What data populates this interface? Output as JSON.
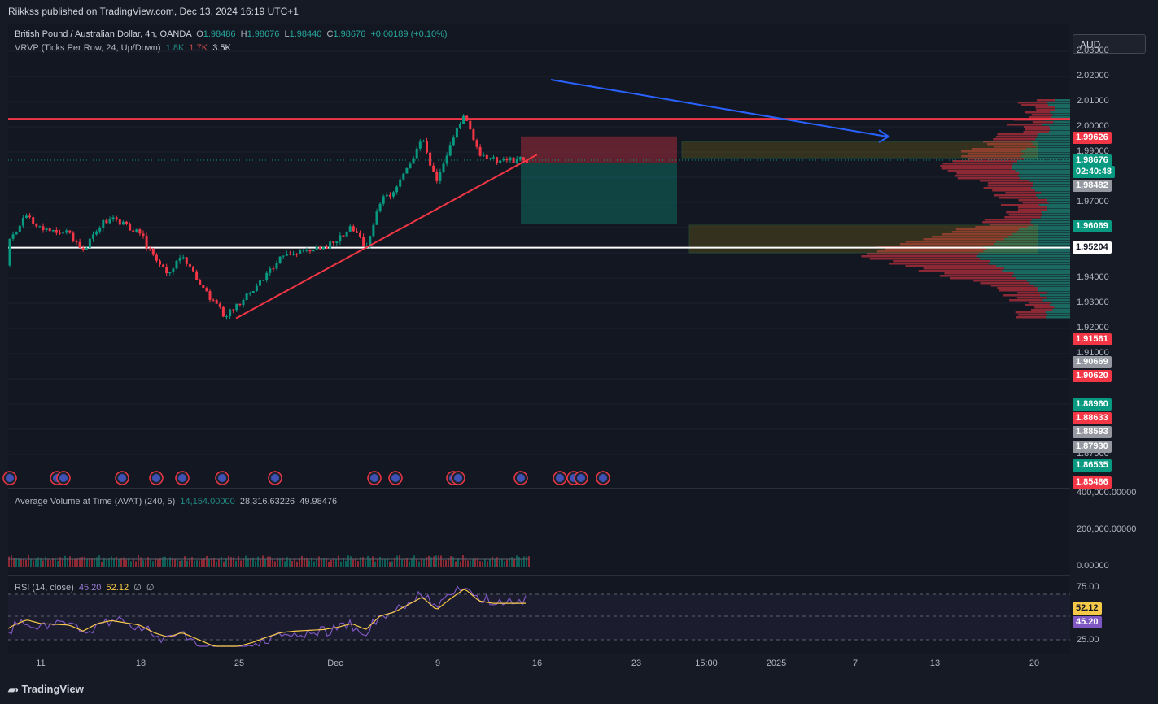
{
  "publisher_line": "Riikkss published on TradingView.com, Dec 13, 2024 16:19 UTC+1",
  "currency": "AUD",
  "main_legend": {
    "symbol": "British Pound / Australian Dollar, 4h, OANDA",
    "o_label": "O",
    "o": "1.98486",
    "h_label": "H",
    "h": "1.98676",
    "l_label": "L",
    "l": "1.98440",
    "c_label": "C",
    "c": "1.98676",
    "change": "+0.00189 (+0.10%)"
  },
  "vrvp_legend": {
    "label": "VRVP (Ticks Per Row, 24, Up/Down)",
    "v1": "1.8K",
    "v2": "1.7K",
    "v3": "3.5K"
  },
  "avat_legend": {
    "label": "Average Volume at Time (AVAT) (240, 5)",
    "v1": "14,154.00000",
    "v2": "28,316.63226",
    "v3": "49.98476"
  },
  "rsi_legend": {
    "label": "RSI (14, close)",
    "v1": "45.20",
    "v2": "52.12",
    "v3": "∅",
    "v4": "∅"
  },
  "price_axis": {
    "ticks": [
      "2.03000",
      "2.02000",
      "2.01000",
      "2.00000",
      "1.99000",
      "1.97000",
      "1.95000",
      "1.94000",
      "1.93000",
      "1.92000",
      "1.91000",
      "1.87000"
    ],
    "tags": [
      {
        "text": "1.99626",
        "color": "#f23645"
      },
      {
        "text": "1.98676",
        "color": "#089981"
      },
      {
        "text": "02:40:48",
        "color": "#089981"
      },
      {
        "text": "1.98482",
        "color": "#9598a1"
      },
      {
        "text": "1.96069",
        "color": "#089981"
      },
      {
        "text": "1.95204",
        "color": "#ffffff"
      },
      {
        "text": "1.91561",
        "color": "#f23645"
      },
      {
        "text": "1.90669",
        "color": "#9598a1"
      },
      {
        "text": "1.90620",
        "color": "#f23645"
      },
      {
        "text": "1.88960",
        "color": "#089981"
      },
      {
        "text": "1.88633",
        "color": "#f23645"
      },
      {
        "text": "1.88593",
        "color": "#9598a1"
      },
      {
        "text": "1.87930",
        "color": "#9598a1"
      },
      {
        "text": "1.86535",
        "color": "#089981"
      },
      {
        "text": "1.85486",
        "color": "#f23645"
      }
    ]
  },
  "volume_axis": [
    "400,000.00000",
    "200,000.00000",
    "0.00000"
  ],
  "rsi_axis": {
    "ticks": [
      "75.00",
      "25.00"
    ],
    "tag1": "52.12",
    "tag2": "45.20"
  },
  "time_axis": [
    "11",
    "18",
    "25",
    "Dec",
    "9",
    "16",
    "23",
    "15:00",
    "2025",
    "7",
    "13",
    "20"
  ],
  "branding": "TradingView",
  "chart_data": {
    "type": "candlestick",
    "symbol": "British Pound / Australian Dollar, 4h, OANDA",
    "ylim": [
      1.85,
      2.035
    ],
    "close_path": [
      [
        "Nov 8",
        1.945
      ],
      [
        "Nov 9",
        1.957
      ],
      [
        "Nov 10",
        1.965
      ],
      [
        "Nov 11",
        1.96
      ],
      [
        "Nov 13",
        1.958
      ],
      [
        "Nov 14",
        1.95
      ],
      [
        "Nov 15",
        1.96
      ],
      [
        "Nov 16",
        1.964
      ],
      [
        "Nov 18",
        1.958
      ],
      [
        "Nov 19",
        1.948
      ],
      [
        "Nov 20",
        1.942
      ],
      [
        "Nov 21",
        1.948
      ],
      [
        "Nov 22",
        1.94
      ],
      [
        "Nov 23",
        1.932
      ],
      [
        "Nov 24",
        1.925
      ],
      [
        "Nov 25",
        1.93
      ],
      [
        "Nov 26",
        1.935
      ],
      [
        "Nov 27",
        1.942
      ],
      [
        "Nov 28",
        1.948
      ],
      [
        "Nov 29",
        1.95
      ],
      [
        "Dec 1",
        1.952
      ],
      [
        "Dec 2",
        1.955
      ],
      [
        "Dec 3",
        1.96
      ],
      [
        "Dec 4",
        1.952
      ],
      [
        "Dec 5",
        1.97
      ],
      [
        "Dec 6",
        1.975
      ],
      [
        "Dec 7",
        1.985
      ],
      [
        "Dec 8",
        1.995
      ],
      [
        "Dec 9",
        1.978
      ],
      [
        "Dec 10",
        1.993
      ],
      [
        "Dec 11",
        2.006
      ],
      [
        "Dec 12",
        1.99
      ],
      [
        "Dec 13",
        1.98676
      ]
    ],
    "horizontal_lines": [
      2.0032,
      1.95204
    ],
    "trendline": [
      [
        "Nov 24",
        1.924
      ],
      [
        "Dec 13",
        1.989
      ]
    ],
    "short_position": {
      "entry": 1.9858,
      "stop": 1.9962,
      "target": 1.9614
    },
    "zones": [
      [
        1.9877,
        1.994
      ],
      [
        1.95,
        1.961
      ]
    ],
    "rsi": {
      "rsi_last": 45.2,
      "ma_last": 52.12,
      "upper": 75,
      "lower": 25
    }
  }
}
